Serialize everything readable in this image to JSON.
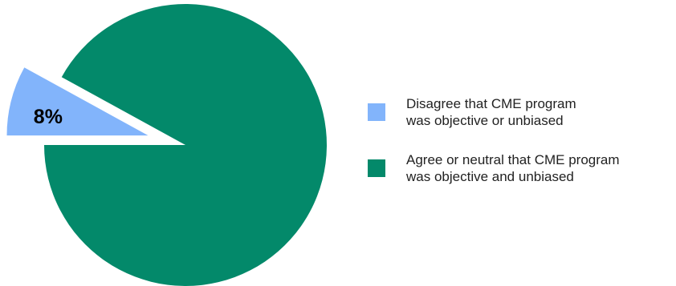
{
  "chart_data": {
    "type": "pie",
    "title": "",
    "slices": [
      {
        "label": "Disagree that CME program\nwas objective or unbiased",
        "value": 8,
        "display_label": "8%",
        "color": "#82b4fb",
        "exploded": true
      },
      {
        "label": "Agree or neutral that CME program\nwas objective and unbiased",
        "value": 92,
        "display_label": "",
        "color": "#03896a",
        "exploded": false
      }
    ],
    "legend_position": "right"
  }
}
